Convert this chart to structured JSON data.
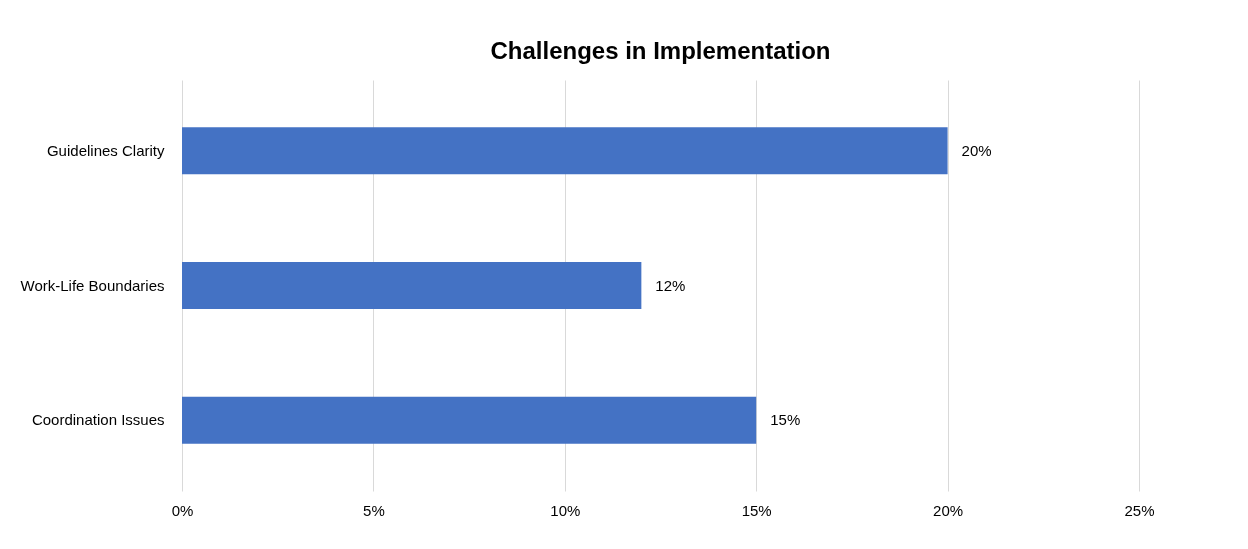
{
  "chart_data": {
    "type": "bar",
    "orientation": "horizontal",
    "title": "Challenges in Implementation",
    "categories": [
      "Guidelines Clarity",
      "Work-Life Boundaries",
      "Coordination Issues"
    ],
    "values": [
      20,
      12,
      15
    ],
    "color": "#4472c4",
    "value_labels": [
      "20%",
      "12%",
      "15%"
    ],
    "xlim": [
      0,
      25
    ],
    "xticks": [
      {
        "value": 0,
        "label": "0%"
      },
      {
        "value": 5,
        "label": "5%"
      },
      {
        "value": 10,
        "label": "10%"
      },
      {
        "value": 15,
        "label": "15%"
      },
      {
        "value": 20,
        "label": "20%"
      },
      {
        "value": 25,
        "label": "25%"
      }
    ],
    "grid": "x"
  }
}
